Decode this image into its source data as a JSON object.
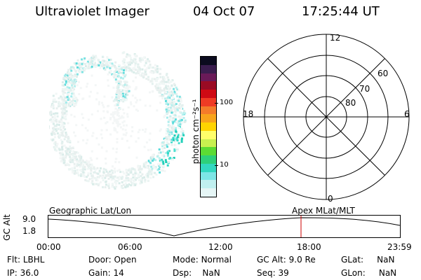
{
  "header": {
    "instrument": "Ultraviolet Imager",
    "date": "04 Oct 07",
    "time": "17:25:44 UT"
  },
  "colorbar": {
    "unit": "photon cm⁻²s⁻¹",
    "ticks": [
      "100",
      "10"
    ],
    "colors": [
      "#0b0b1e",
      "#3a1d4e",
      "#6a1a58",
      "#9a0b24",
      "#cf0a14",
      "#ef3b24",
      "#f47c2a",
      "#f8a41c",
      "#ffd400",
      "#ffff6a",
      "#c8f050",
      "#5cdb34",
      "#2ed07a",
      "#33d8c0",
      "#7de6e6",
      "#c0f0f0",
      "#e6f6f6"
    ]
  },
  "polar": {
    "mlt_labels": {
      "top": "12",
      "bottom": "0",
      "left": "18",
      "right": "6"
    },
    "lat_labels": [
      "60",
      "70",
      "80"
    ]
  },
  "timeline": {
    "left_title": "Geographic Lat/Lon",
    "right_title": "Apex MLat/MLT",
    "axis_label": "GC Alt",
    "y_ticks": [
      "9.0",
      "1.8"
    ],
    "x_ticks": [
      "00:00",
      "06:00",
      "12:00",
      "18:00",
      "23:59"
    ],
    "marker_color": "#cc0000"
  },
  "status": {
    "filter": {
      "label": "Flt:",
      "value": "LBHL"
    },
    "ip": {
      "label": "IP:",
      "value": "36.0"
    },
    "door": {
      "label": "Door:",
      "value": "Open"
    },
    "gain": {
      "label": "Gain:",
      "value": "14"
    },
    "mode": {
      "label": "Mode:",
      "value": "Normal"
    },
    "dsp": {
      "label": "Dsp:",
      "value": "NaN"
    },
    "gc_alt": {
      "label": "GC Alt:",
      "value": "9.0 Re"
    },
    "seq": {
      "label": "Seq:",
      "value": "39"
    },
    "glat": {
      "label": "GLat:",
      "value": "NaN"
    },
    "glon": {
      "label": "GLon:",
      "value": "NaN"
    }
  }
}
